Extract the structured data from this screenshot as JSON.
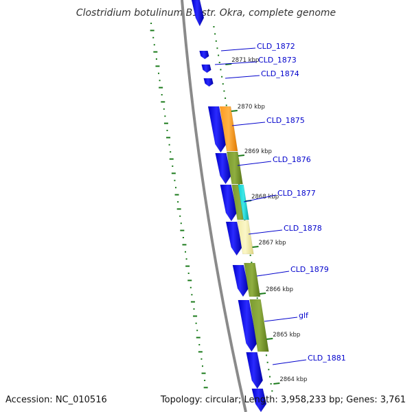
{
  "title": "Clostridium botulinum B1 str. Okra, complete genome",
  "footer": {
    "accession": "Accession: NC_010516",
    "summary": "Topology: circular; Length: 3,958,233 bp; Genes: 3,761"
  },
  "colors": {
    "backbone": "#8a8a8a",
    "forward_gene": "#0000ee",
    "tick": "#1a7a1a",
    "label": "#0000cc",
    "label_line": "#0000cc"
  },
  "scale_ticks": [
    "2871 kbp",
    "2870 kbp",
    "2869 kbp",
    "2868 kbp",
    "2867 kbp",
    "2866 kbp",
    "2865 kbp",
    "2864 kbp"
  ],
  "gene_labels": [
    "CLD_1872",
    "CLD_1873",
    "CLD_1874",
    "CLD_1875",
    "CLD_1876",
    "CLD_1877",
    "CLD_1878",
    "CLD_1879",
    "glf",
    "CLD_1881"
  ],
  "cog_colors": [
    "#ff8c00",
    "#6b8e23",
    "#00c8c8",
    "#eee8aa"
  ]
}
